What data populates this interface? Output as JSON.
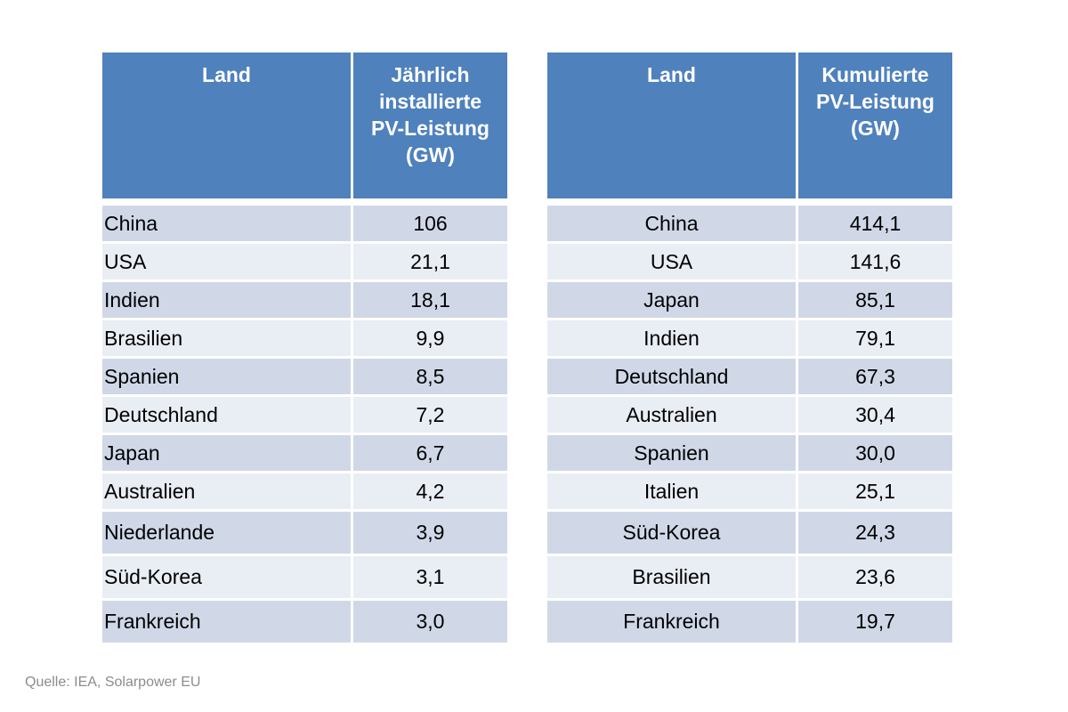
{
  "left_table": {
    "headers": [
      "Land",
      "Jährlich installierte PV-Leistung (GW)"
    ],
    "rows": [
      {
        "land": "China",
        "value": "106"
      },
      {
        "land": "USA",
        "value": "21,1"
      },
      {
        "land": "Indien",
        "value": "18,1"
      },
      {
        "land": "Brasilien",
        "value": "9,9"
      },
      {
        "land": "Spanien",
        "value": "8,5"
      },
      {
        "land": "Deutschland",
        "value": "7,2"
      },
      {
        "land": "Japan",
        "value": "6,7"
      },
      {
        "land": "Australien",
        "value": "4,2"
      },
      {
        "land": "Niederlande",
        "value": "3,9"
      },
      {
        "land": "Süd-Korea",
        "value": "3,1"
      },
      {
        "land": "Frankreich",
        "value": "3,0"
      }
    ]
  },
  "right_table": {
    "headers": [
      "Land",
      "Kumulierte PV-Leistung (GW)"
    ],
    "rows": [
      {
        "land": "China",
        "value": "414,1"
      },
      {
        "land": "USA",
        "value": "141,6"
      },
      {
        "land": "Japan",
        "value": "85,1"
      },
      {
        "land": "Indien",
        "value": "79,1"
      },
      {
        "land": "Deutschland",
        "value": "67,3"
      },
      {
        "land": "Australien",
        "value": "30,4"
      },
      {
        "land": "Spanien",
        "value": "30,0"
      },
      {
        "land": "Italien",
        "value": "25,1"
      },
      {
        "land": "Süd-Korea",
        "value": "24,3"
      },
      {
        "land": "Brasilien",
        "value": "23,6"
      },
      {
        "land": "Frankreich",
        "value": "19,7"
      }
    ]
  },
  "source": "Quelle: IEA, Solarpower EU",
  "colors": {
    "header_bg": "#4f81bd",
    "row_dark": "#d0d8e8",
    "row_light": "#e9edf4"
  }
}
